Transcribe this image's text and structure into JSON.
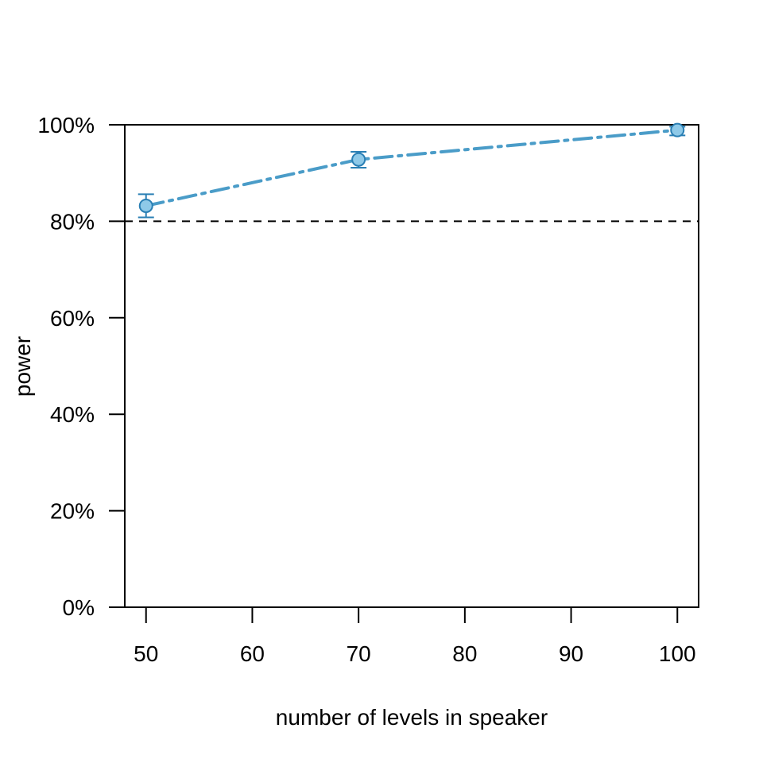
{
  "chart_data": {
    "type": "line",
    "title": "",
    "xlabel": "number of levels in speaker",
    "ylabel": "power",
    "xlim": [
      48,
      102
    ],
    "ylim": [
      0,
      100
    ],
    "x_ticks": [
      50,
      60,
      70,
      80,
      90,
      100
    ],
    "x_tick_labels": [
      "50",
      "60",
      "70",
      "80",
      "90",
      "100"
    ],
    "y_ticks": [
      0,
      20,
      40,
      60,
      80,
      100
    ],
    "y_tick_labels": [
      "0%",
      "20%",
      "40%",
      "60%",
      "80%",
      "100%"
    ],
    "reference_line": {
      "y": 80,
      "style": "dashed"
    },
    "grid": false,
    "series": [
      {
        "x": [
          50,
          70,
          100
        ],
        "y": [
          83.2,
          92.8,
          98.9
        ],
        "ci_lower": [
          80.8,
          91.1,
          97.8
        ],
        "ci_upper": [
          85.6,
          94.4,
          99.6
        ],
        "line_style": "dash-dot",
        "color": "#4a9cc8",
        "marker_fill": "#8ec9e8",
        "marker_edge": "#2a7fb4"
      }
    ]
  }
}
